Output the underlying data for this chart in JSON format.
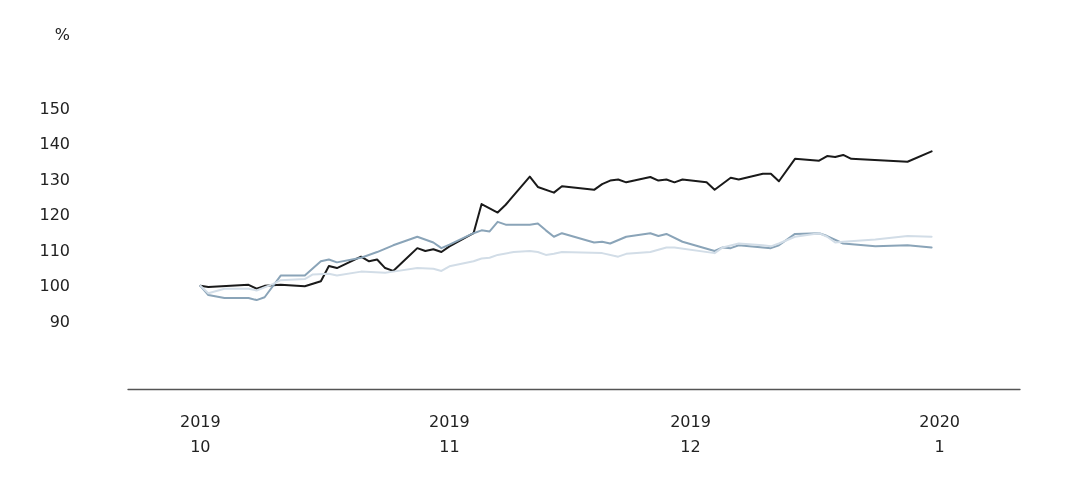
{
  "chart_data": {
    "type": "line",
    "ylabel": "%",
    "xlim": [
      "2019-09-22",
      "2020-01-11"
    ],
    "ylim": [
      71,
      150
    ],
    "xticks": [
      {
        "value": "2019-10-01",
        "label": "2019\n10"
      },
      {
        "value": "2019-11-01",
        "label": "2019\n11"
      },
      {
        "value": "2019-12-01",
        "label": "2019\n12"
      },
      {
        "value": "2020-01-01",
        "label": "2020\n1"
      }
    ],
    "yticks": [
      90,
      100,
      110,
      120,
      130,
      140,
      150
    ],
    "grid": false,
    "marker": "none",
    "line_style": "solid",
    "series": [
      {
        "color": "#1a1a1a",
        "x": [
          "2019-10-01",
          "2019-10-02",
          "2019-10-07",
          "2019-10-08",
          "2019-10-09",
          "2019-10-11",
          "2019-10-14",
          "2019-10-16",
          "2019-10-17",
          "2019-10-18",
          "2019-10-21",
          "2019-10-22",
          "2019-10-23",
          "2019-10-24",
          "2019-10-25",
          "2019-10-28",
          "2019-10-29",
          "2019-10-30",
          "2019-10-31",
          "2019-11-01",
          "2019-11-04",
          "2019-11-05",
          "2019-11-07",
          "2019-11-08",
          "2019-11-11",
          "2019-11-12",
          "2019-11-14",
          "2019-11-15",
          "2019-11-19",
          "2019-11-20",
          "2019-11-21",
          "2019-11-22",
          "2019-11-23",
          "2019-11-26",
          "2019-11-27",
          "2019-11-28",
          "2019-11-29",
          "2019-11-30",
          "2019-12-03",
          "2019-12-04",
          "2019-12-06",
          "2019-12-07",
          "2019-12-10",
          "2019-12-11",
          "2019-12-12",
          "2019-12-14",
          "2019-12-17",
          "2019-12-18",
          "2019-12-19",
          "2019-12-20",
          "2019-12-21",
          "2019-12-28",
          "2019-12-31"
        ],
        "values": [
          100,
          99.7,
          100.3,
          99.2,
          100,
          100.3,
          99.9,
          101.3,
          105.6,
          105,
          108.2,
          106.9,
          107.4,
          105,
          104.2,
          110.6,
          109.8,
          110.3,
          109.5,
          111.1,
          114.8,
          123,
          120.6,
          122.8,
          130.7,
          127.8,
          126.2,
          128,
          127,
          128.6,
          129.6,
          129.9,
          129.1,
          130.6,
          129.6,
          129.9,
          129.1,
          129.9,
          129.1,
          127,
          130.4,
          129.9,
          131.5,
          131.5,
          129.4,
          135.7,
          135.2,
          136.5,
          136.2,
          136.8,
          135.7,
          134.9,
          137.8
        ]
      },
      {
        "color": "#8aa4b8",
        "x": [
          "2019-10-01",
          "2019-10-02",
          "2019-10-04",
          "2019-10-07",
          "2019-10-08",
          "2019-10-09",
          "2019-10-11",
          "2019-10-14",
          "2019-10-16",
          "2019-10-17",
          "2019-10-18",
          "2019-10-21",
          "2019-10-23",
          "2019-10-25",
          "2019-10-28",
          "2019-10-30",
          "2019-10-31",
          "2019-11-01",
          "2019-11-04",
          "2019-11-05",
          "2019-11-06",
          "2019-11-07",
          "2019-11-08",
          "2019-11-11",
          "2019-11-12",
          "2019-11-13",
          "2019-11-14",
          "2019-11-15",
          "2019-11-19",
          "2019-11-20",
          "2019-11-21",
          "2019-11-23",
          "2019-11-26",
          "2019-11-27",
          "2019-11-28",
          "2019-11-30",
          "2019-12-04",
          "2019-12-05",
          "2019-12-06",
          "2019-12-07",
          "2019-12-10",
          "2019-12-11",
          "2019-12-12",
          "2019-12-14",
          "2019-12-17",
          "2019-12-18",
          "2019-12-20",
          "2019-12-24",
          "2019-12-28",
          "2019-12-31"
        ],
        "values": [
          100,
          97.4,
          96.6,
          96.6,
          96,
          96.8,
          102.9,
          102.9,
          106.9,
          107.4,
          106.6,
          107.9,
          109.5,
          111.4,
          113.8,
          112.2,
          110.6,
          111.6,
          114.8,
          115.6,
          115.3,
          118,
          117.2,
          117.2,
          117.5,
          115.6,
          113.8,
          114.8,
          112.2,
          112.4,
          111.9,
          113.8,
          114.8,
          114,
          114.6,
          112.4,
          109.8,
          110.8,
          110.6,
          111.4,
          110.8,
          110.6,
          111.4,
          114.6,
          114.8,
          114,
          111.9,
          111.1,
          111.4,
          110.8
        ]
      },
      {
        "color": "#d2dde7",
        "x": [
          "2019-10-01",
          "2019-10-02",
          "2019-10-04",
          "2019-10-07",
          "2019-10-08",
          "2019-10-10",
          "2019-10-11",
          "2019-10-14",
          "2019-10-15",
          "2019-10-17",
          "2019-10-18",
          "2019-10-21",
          "2019-10-24",
          "2019-10-25",
          "2019-10-28",
          "2019-10-30",
          "2019-10-31",
          "2019-11-01",
          "2019-11-04",
          "2019-11-05",
          "2019-11-06",
          "2019-11-07",
          "2019-11-09",
          "2019-11-11",
          "2019-11-12",
          "2019-11-13",
          "2019-11-14",
          "2019-11-15",
          "2019-11-20",
          "2019-11-22",
          "2019-11-23",
          "2019-11-26",
          "2019-11-28",
          "2019-11-29",
          "2019-12-04",
          "2019-12-05",
          "2019-12-07",
          "2019-12-10",
          "2019-12-11",
          "2019-12-12",
          "2019-12-14",
          "2019-12-17",
          "2019-12-18",
          "2019-12-19",
          "2019-12-20",
          "2019-12-24",
          "2019-12-28",
          "2019-12-31"
        ],
        "values": [
          100,
          97.9,
          99.2,
          99.2,
          98.7,
          100.5,
          101.6,
          101.9,
          103.2,
          103.4,
          102.9,
          104,
          103.7,
          104,
          105,
          104.8,
          104.2,
          105.5,
          106.9,
          107.7,
          107.9,
          108.7,
          109.5,
          109.8,
          109.5,
          108.7,
          109,
          109.5,
          109.2,
          108.2,
          109,
          109.5,
          110.8,
          110.8,
          109.2,
          110.8,
          111.9,
          111.4,
          111.1,
          111.9,
          113.8,
          114.8,
          113.8,
          112.2,
          112.4,
          113,
          114,
          113.8
        ]
      }
    ]
  }
}
